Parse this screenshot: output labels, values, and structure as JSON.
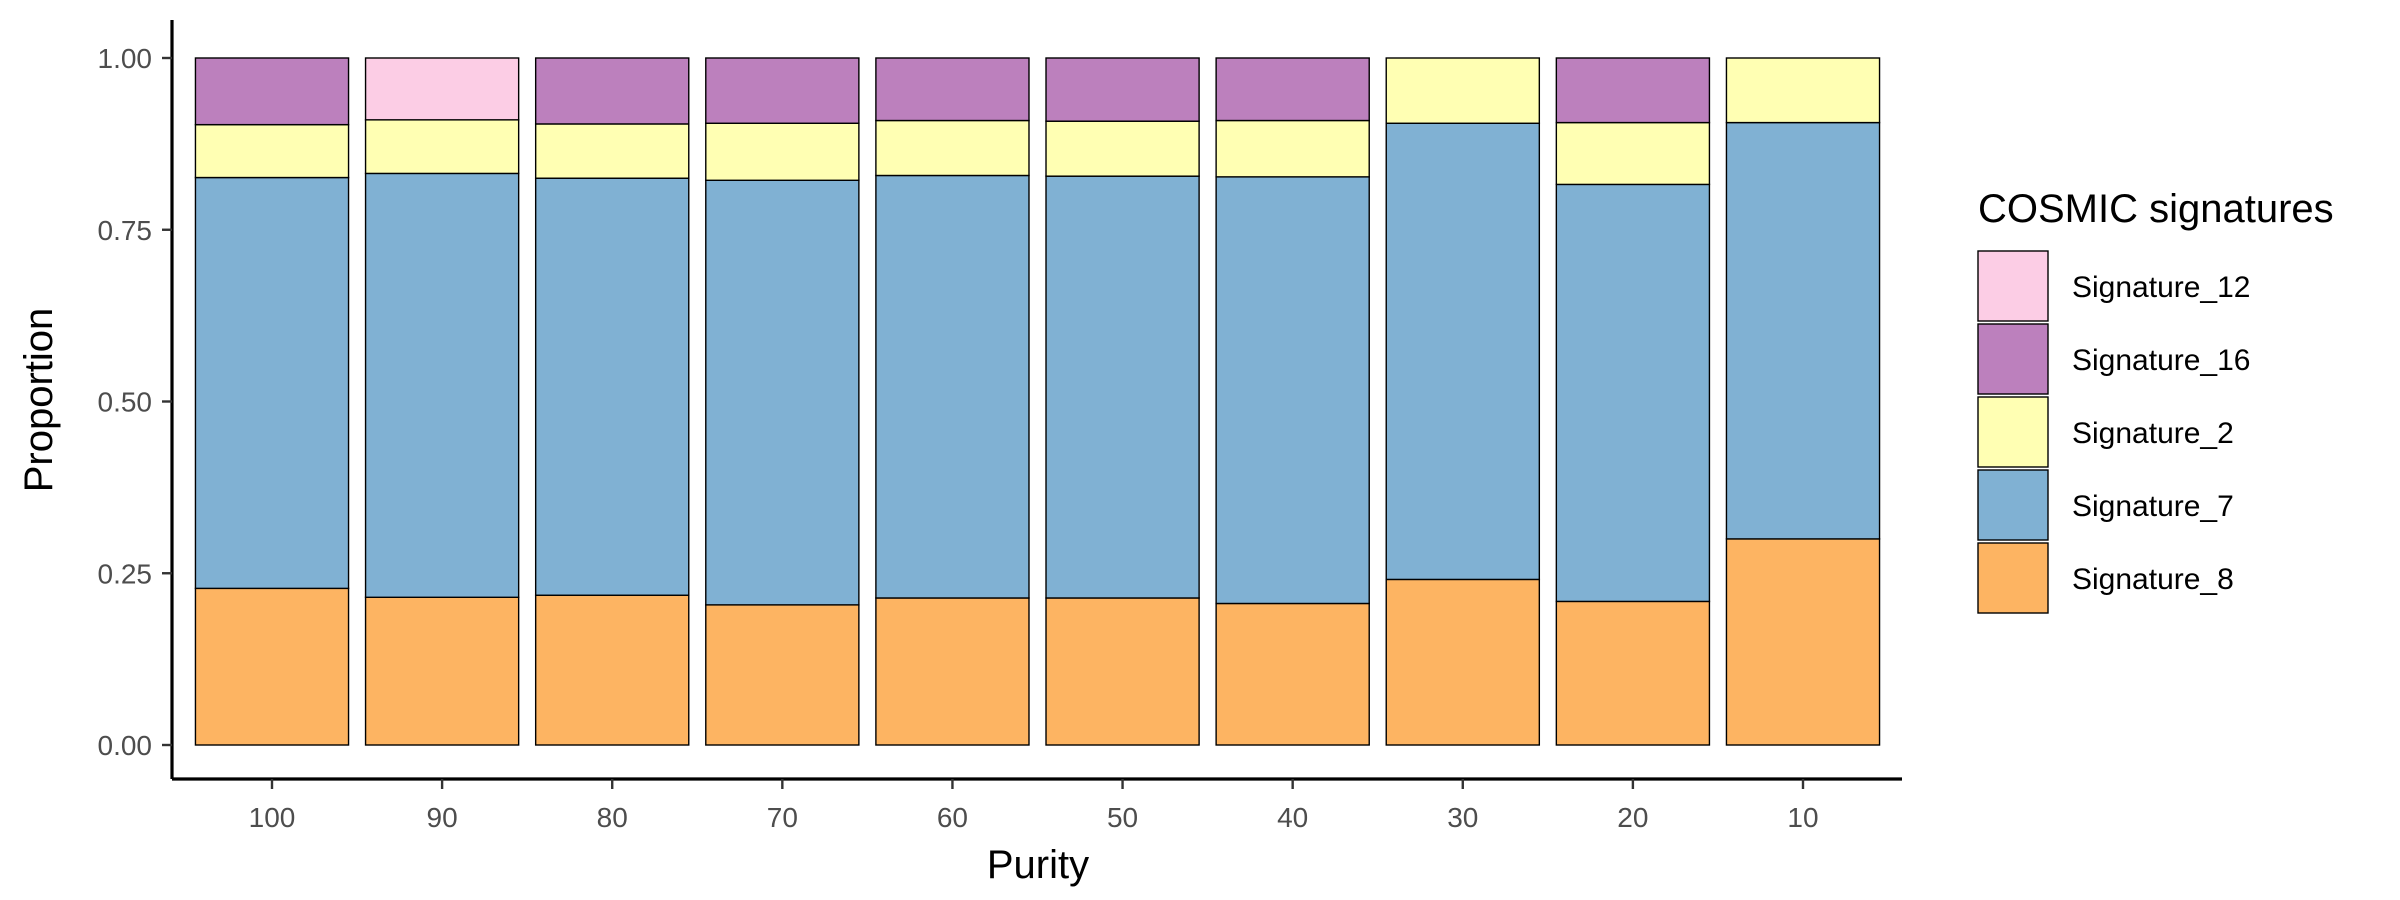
{
  "chart_data": {
    "type": "bar",
    "stacked": true,
    "xlabel": "Purity",
    "ylabel": "Proportion",
    "categories": [
      "100",
      "90",
      "80",
      "70",
      "60",
      "50",
      "40",
      "30",
      "20",
      "10"
    ],
    "ylim": [
      0,
      1
    ],
    "yticks": [
      "0.00",
      "0.25",
      "0.50",
      "0.75",
      "1.00"
    ],
    "grid": false,
    "legend": {
      "title": "COSMIC signatures",
      "placement": "right",
      "entries": [
        "Signature_12",
        "Signature_16",
        "Signature_2",
        "Signature_7",
        "Signature_8"
      ]
    },
    "series": [
      {
        "name": "Signature_8",
        "color": "#fdb462",
        "values": [
          0.228,
          0.215,
          0.218,
          0.204,
          0.214,
          0.214,
          0.206,
          0.241,
          0.209,
          0.3
        ]
      },
      {
        "name": "Signature_7",
        "color": "#80b1d3",
        "values": [
          0.598,
          0.617,
          0.607,
          0.618,
          0.615,
          0.614,
          0.621,
          0.664,
          0.607,
          0.606
        ]
      },
      {
        "name": "Signature_2",
        "color": "#ffffb3",
        "values": [
          0.077,
          0.078,
          0.079,
          0.083,
          0.08,
          0.08,
          0.082,
          0.095,
          0.09,
          0.094
        ]
      },
      {
        "name": "Signature_16",
        "color": "#bc80bd",
        "values": [
          0.097,
          0,
          0.096,
          0.095,
          0.091,
          0.092,
          0.091,
          0,
          0.094,
          0
        ]
      },
      {
        "name": "Signature_12",
        "color": "#fccde5",
        "values": [
          0,
          0.09,
          0,
          0,
          0,
          0,
          0,
          0,
          0,
          0
        ]
      }
    ]
  }
}
